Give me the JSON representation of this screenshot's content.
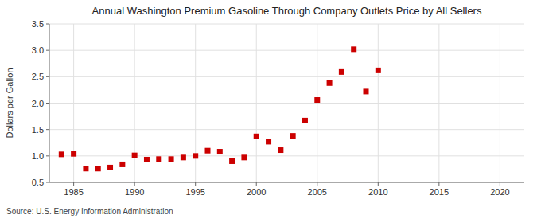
{
  "chart_data": {
    "type": "scatter",
    "title": "Annual Washington Premium Gasoline Through Company Outlets Price by All Sellers",
    "ylabel": "Dollars per Gallon",
    "source": "Source: U.S. Energy Information Administration",
    "color": "#cc0000",
    "marker": "square",
    "grid": true,
    "xlim": [
      1983,
      2022
    ],
    "ylim": [
      0.5,
      3.5
    ],
    "xticks": [
      1985,
      1990,
      1995,
      2000,
      2005,
      2010,
      2015,
      2020
    ],
    "yticks": [
      0.5,
      {
        "value": 1.0,
        "label": "1.0"
      },
      1.5,
      {
        "value": 2.0,
        "label": "2.0"
      },
      2.5,
      {
        "value": 3.0,
        "label": "3.0"
      },
      3.5
    ],
    "x": [
      1984,
      1985,
      1986,
      1987,
      1988,
      1989,
      1990,
      1991,
      1992,
      1993,
      1994,
      1995,
      1996,
      1997,
      1998,
      1999,
      2000,
      2001,
      2002,
      2003,
      2004,
      2005,
      2006,
      2007,
      2008,
      2009,
      2010
    ],
    "values": [
      1.03,
      1.04,
      0.76,
      0.76,
      0.78,
      0.84,
      1.01,
      0.93,
      0.94,
      0.94,
      0.97,
      1.0,
      1.1,
      1.08,
      0.9,
      0.97,
      1.37,
      1.27,
      1.11,
      1.38,
      1.67,
      2.06,
      2.38,
      2.59,
      3.02,
      2.22,
      2.62
    ]
  }
}
